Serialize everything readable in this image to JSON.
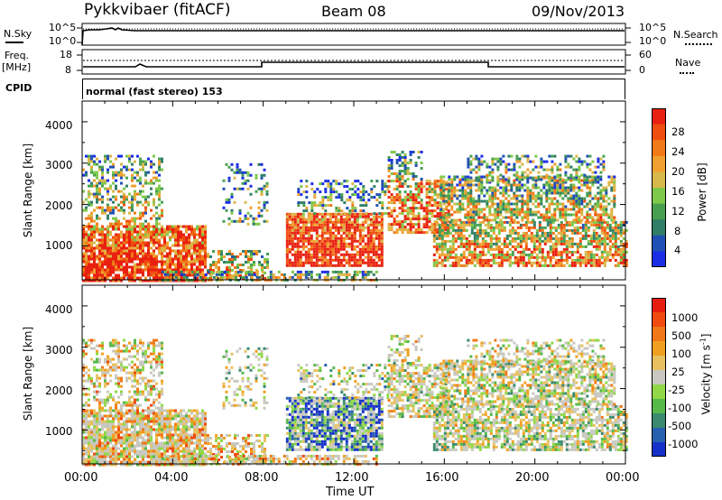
{
  "header": {
    "title": "Pykkvibaer (fitACF)",
    "beam": "Beam 08",
    "date": "09/Nov/2013"
  },
  "top_panels": {
    "nsky_label": "N.Sky",
    "nsearch_label": "N.Search",
    "freq_label_line1": "Freq.",
    "freq_label_line2": "[MHz]",
    "nave_label": "Nave",
    "cpid_label": "CPID",
    "program_text": "normal (fast stereo) 153",
    "noise_ticks_left": [
      "10^5",
      "10^0"
    ],
    "noise_ticks_right": [
      "10^5",
      "10^0"
    ],
    "freq_ticks": [
      "18",
      "8"
    ],
    "nave_ticks": [
      "60",
      "0"
    ]
  },
  "chart_data": [
    {
      "type": "heatmap",
      "name": "power",
      "ylabel": "Slant Range [km]",
      "ylim": [
        180,
        4500
      ],
      "yticks": [
        "1000",
        "2000",
        "3000",
        "4000"
      ],
      "xlim_hours": [
        0,
        24
      ],
      "colorbar": {
        "label": "Power [dB]",
        "ticks": [
          "4",
          "8",
          "12",
          "16",
          "20",
          "24",
          "28"
        ],
        "colors": [
          "#1a2ee6",
          "#2050b4",
          "#2f7e66",
          "#46a050",
          "#7ec84a",
          "#d8b84a",
          "#f0a030",
          "#f07a18",
          "#ef4e10",
          "#e82010"
        ]
      }
    },
    {
      "type": "heatmap",
      "name": "velocity",
      "xlabel": "Time UT",
      "ylabel": "Slant Range [km]",
      "ylim": [
        180,
        4500
      ],
      "yticks": [
        "1000",
        "2000",
        "3000",
        "4000"
      ],
      "xticks": [
        "00:00",
        "04:00",
        "08:00",
        "12:00",
        "16:00",
        "20:00",
        "00:00"
      ],
      "xlim_hours": [
        0,
        24
      ],
      "colorbar": {
        "label": "Velocity [m s",
        "label_sup": "-1",
        "label_end": "]",
        "ticks": [
          "1000",
          "500",
          "100",
          "25",
          "-25",
          "-100",
          "-500",
          "-1000"
        ],
        "colors": [
          "#1530c8",
          "#2860b0",
          "#3a8a70",
          "#55b848",
          "#90d848",
          "#c8c8c0",
          "#e8c060",
          "#f0a020",
          "#f07818",
          "#ef4a10",
          "#e81c10"
        ]
      }
    }
  ]
}
